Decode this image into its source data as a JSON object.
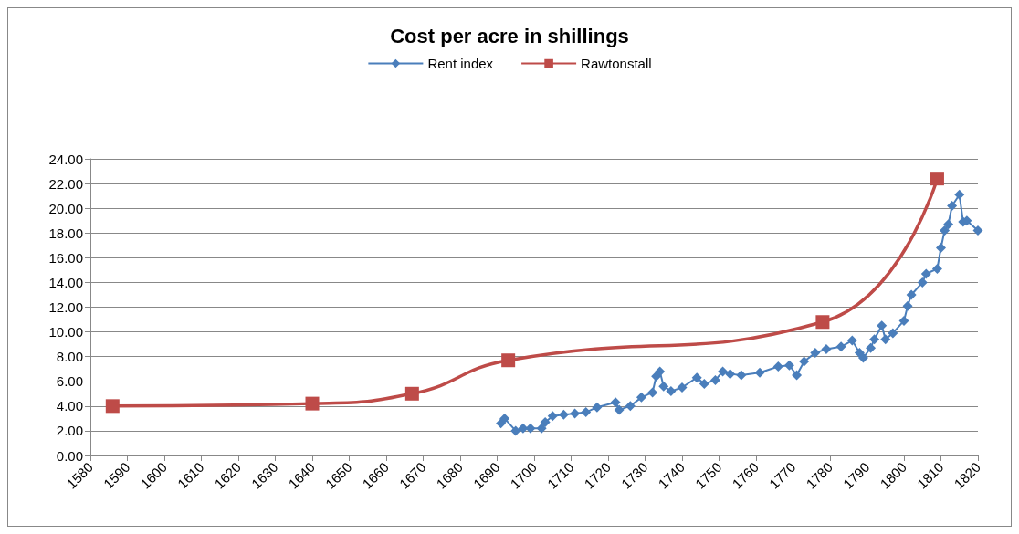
{
  "chart_data": {
    "type": "line",
    "title": "Cost per acre in shillings",
    "legend": "top",
    "grid": "y",
    "line_style": "solid",
    "xlim": [
      1580,
      1820
    ],
    "xticks": [
      1580,
      1590,
      1600,
      1610,
      1620,
      1630,
      1640,
      1650,
      1660,
      1670,
      1680,
      1690,
      1700,
      1710,
      1720,
      1730,
      1740,
      1750,
      1760,
      1770,
      1780,
      1790,
      1800,
      1810,
      1820
    ],
    "ylim": [
      0,
      24
    ],
    "yticks": [
      {
        "value": 0,
        "label": "0.00"
      },
      {
        "value": 2,
        "label": "2.00"
      },
      {
        "value": 4,
        "label": "4.00"
      },
      {
        "value": 6,
        "label": "6.00"
      },
      {
        "value": 8,
        "label": "8.00"
      },
      {
        "value": 10,
        "label": "10.00"
      },
      {
        "value": 12,
        "label": "12.00"
      },
      {
        "value": 14,
        "label": "14.00"
      },
      {
        "value": 16,
        "label": "16.00"
      },
      {
        "value": 18,
        "label": "18.00"
      },
      {
        "value": 20,
        "label": "20.00"
      },
      {
        "value": 22,
        "label": "22.00"
      },
      {
        "value": 24,
        "label": "24.00"
      }
    ],
    "series": [
      {
        "name": "Rent index",
        "color": "#4a7ebb",
        "marker": "diamond",
        "x": [
          1691,
          1692,
          1695,
          1697,
          1699,
          1702,
          1703,
          1705,
          1708,
          1711,
          1714,
          1717,
          1722,
          1723,
          1726,
          1729,
          1732,
          1733,
          1734,
          1735,
          1737,
          1740,
          1744,
          1746,
          1749,
          1751,
          1753,
          1756,
          1761,
          1766,
          1769,
          1771,
          1773,
          1776,
          1779,
          1783,
          1786,
          1788,
          1789,
          1791,
          1792,
          1794,
          1795,
          1797,
          1800,
          1801,
          1802,
          1805,
          1806,
          1809,
          1810,
          1811,
          1812,
          1813,
          1815,
          1816,
          1817,
          1820
        ],
        "values": [
          2.6,
          3.0,
          2.0,
          2.2,
          2.2,
          2.2,
          2.7,
          3.2,
          3.3,
          3.4,
          3.5,
          3.9,
          4.3,
          3.7,
          4.0,
          4.7,
          5.1,
          6.4,
          6.8,
          5.6,
          5.2,
          5.5,
          6.3,
          5.8,
          6.1,
          6.8,
          6.6,
          6.5,
          6.7,
          7.2,
          7.3,
          6.5,
          7.6,
          8.3,
          8.6,
          8.8,
          9.3,
          8.3,
          7.9,
          8.7,
          9.4,
          10.5,
          9.4,
          9.9,
          10.9,
          12.1,
          13.0,
          14.0,
          14.7,
          15.1,
          16.8,
          18.2,
          18.7,
          20.2,
          21.1,
          18.9,
          19.0,
          18.2
        ]
      },
      {
        "name": "Rawtonstall",
        "color": "#be4b48",
        "marker": "square",
        "x": [
          1586,
          1640,
          1667,
          1693,
          1778,
          1809
        ],
        "values": [
          4.0,
          4.2,
          5.0,
          7.7,
          10.8,
          22.4
        ]
      }
    ]
  }
}
